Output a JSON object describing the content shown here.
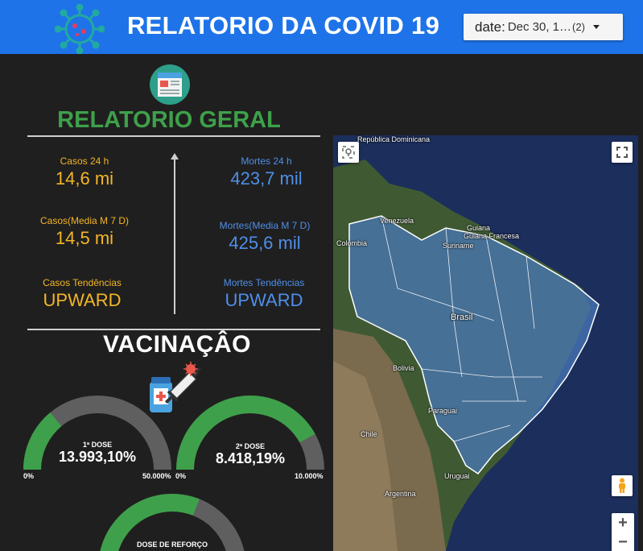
{
  "header": {
    "title": "RELATORIO DA COVID 19",
    "date_filter": {
      "label": "date:",
      "value": "Dec 30, 1…",
      "count": "(2)"
    }
  },
  "geral": {
    "title": "RELATORIO GERAL",
    "casos_24h": {
      "label": "Casos 24 h",
      "value": "14,6 mi"
    },
    "casos_media": {
      "label": "Casos(Media M 7 D)",
      "value": "14,5 mi"
    },
    "casos_tendencia": {
      "label": "Casos Tendências",
      "value": "UPWARD"
    },
    "mortes_24h": {
      "label": "Mortes 24 h",
      "value": "423,7 mil"
    },
    "mortes_media": {
      "label": "Mortes(Media M 7 D)",
      "value": "425,6 mil"
    },
    "mortes_tendencia": {
      "label": "Mortes Tendências",
      "value": "UPWARD"
    }
  },
  "vacinacao": {
    "title": "VACINAÇÂO",
    "gauges": [
      {
        "label": "1ª DOSE",
        "value": "13.993,10%",
        "min": "0%",
        "max": "50.000%",
        "fraction": 0.28
      },
      {
        "label": "2ª DOSE",
        "value": "8.418,19%",
        "min": "0%",
        "max": "10.000%",
        "fraction": 0.84
      },
      {
        "label": "DOSE DE REFORÇO",
        "fraction": 0.62
      }
    ]
  },
  "map": {
    "labels": [
      "República Dominicana",
      "Venezuela",
      "Guiana",
      "Guiana Francesa",
      "Suriname",
      "Colombia",
      "Brasil",
      "Bolivia",
      "Paraguai",
      "Chile",
      "Uruguai",
      "Argentina"
    ],
    "zoom_in": "+",
    "zoom_out": "−"
  },
  "colors": {
    "header": "#1e73e8",
    "green": "#3ea04a",
    "orange": "#f4b625",
    "blue": "#4f8fe8",
    "gauge_bg": "#5f5f5f"
  }
}
